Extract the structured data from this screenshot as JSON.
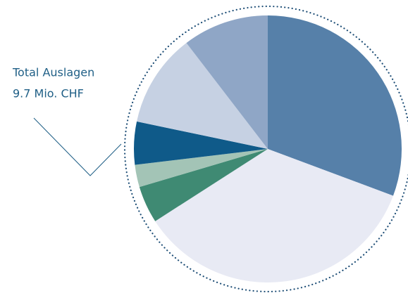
{
  "chart_data": {
    "type": "pie",
    "annotation": [
      "Total Auslagen",
      "9.7 Mio. CHF"
    ],
    "values": [
      30.7,
      35.2,
      4.5,
      2.7,
      5.2,
      11.3,
      10.4
    ],
    "colors": [
      "#5680a9",
      "#e8eaf4",
      "#3f8a73",
      "#a3c4b6",
      "#0f5a89",
      "#c6d1e3",
      "#8fa6c6"
    ],
    "start_angle": 0,
    "direction": "clockwise"
  }
}
